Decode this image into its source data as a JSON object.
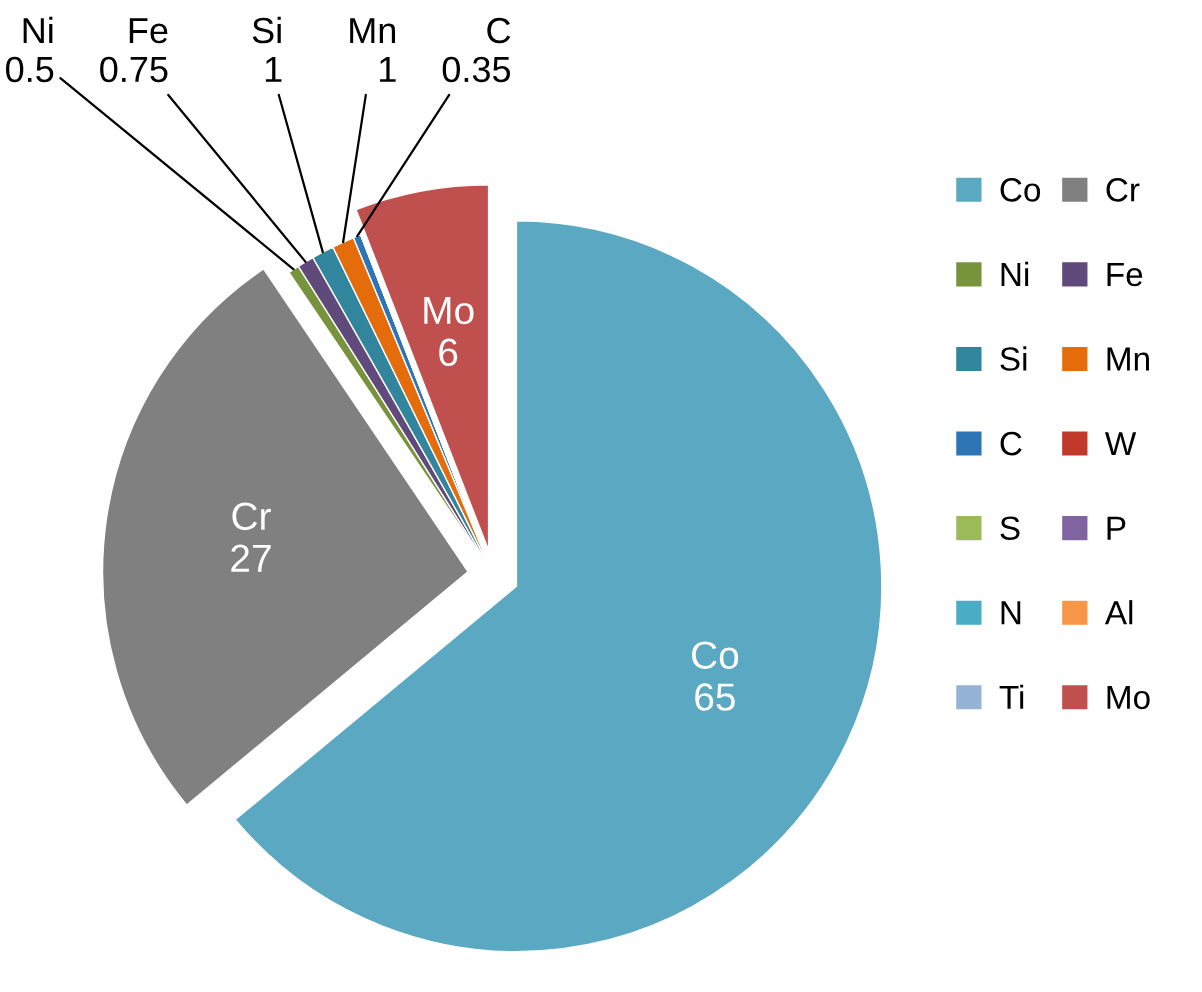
{
  "chart_data": {
    "type": "pie",
    "categories": [
      "Co",
      "Cr",
      "Ni",
      "Fe",
      "Si",
      "Mn",
      "C",
      "W",
      "S",
      "P",
      "N",
      "Al",
      "Ti",
      "Mo"
    ],
    "values": [
      65,
      27,
      0.5,
      0.75,
      1,
      1,
      0.35,
      null,
      null,
      null,
      null,
      null,
      null,
      6
    ],
    "value_labels": [
      "65",
      "27",
      "0.5",
      "0.75",
      "1",
      "1",
      "0.35",
      null,
      null,
      null,
      null,
      null,
      null,
      "6"
    ],
    "colors": [
      "#5ba8c2",
      "#808080",
      "#77933c",
      "#604a7b",
      "#31859c",
      "#e46c0a",
      "#2e75b6",
      "#c0392b",
      "#9bbb59",
      "#8064a2",
      "#4bacc6",
      "#f79646",
      "#95b3d7",
      "#c0504d"
    ],
    "legend": "right"
  }
}
